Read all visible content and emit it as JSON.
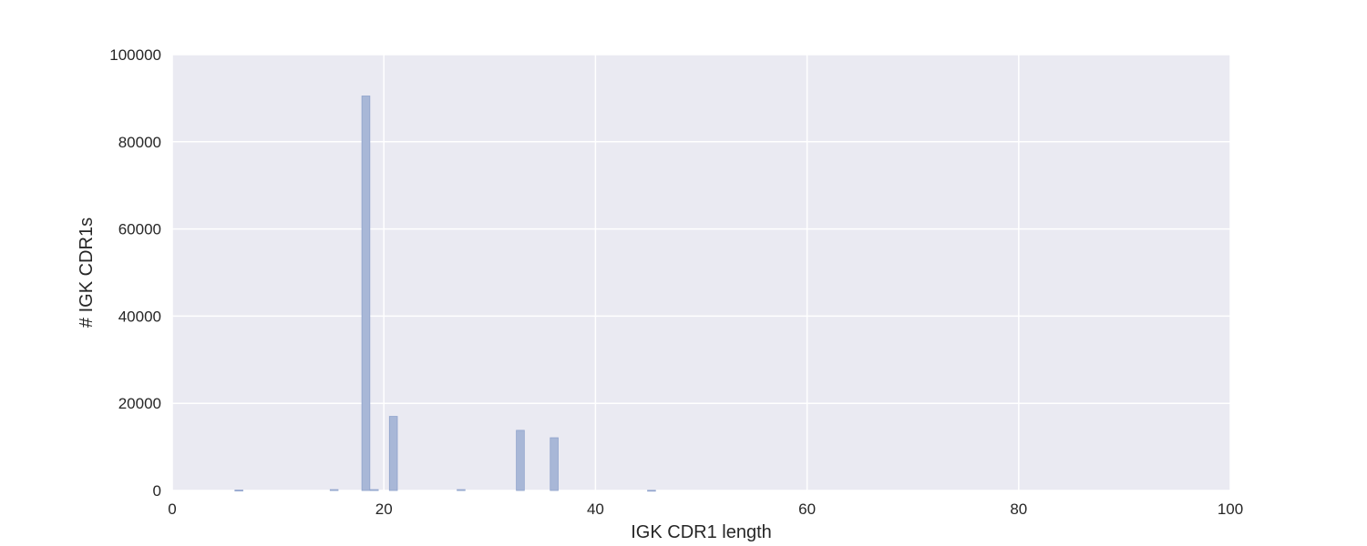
{
  "chart_data": {
    "type": "bar",
    "title": "",
    "xlabel": "IGK CDR1 length",
    "ylabel": "# IGK CDR1s",
    "xlim": [
      0,
      100
    ],
    "ylim": [
      0,
      100000
    ],
    "xticks": [
      0,
      20,
      40,
      60,
      80,
      100
    ],
    "yticks": [
      0,
      20000,
      40000,
      60000,
      80000,
      100000
    ],
    "grid": true,
    "bar_width": 0.75,
    "bars": [
      {
        "x": 6.3,
        "value": 100
      },
      {
        "x": 15.3,
        "value": 200
      },
      {
        "x": 18.3,
        "value": 90500
      },
      {
        "x": 19.1,
        "value": 200
      },
      {
        "x": 20.9,
        "value": 17000
      },
      {
        "x": 27.3,
        "value": 200
      },
      {
        "x": 32.9,
        "value": 13800
      },
      {
        "x": 36.1,
        "value": 12100
      },
      {
        "x": 45.3,
        "value": 50
      }
    ]
  },
  "colors": {
    "plot_background": "#eaeaf2",
    "grid": "#ffffff",
    "bar_fill": "#a8b7d7",
    "bar_edge": "#8fa3cc",
    "text": "#262626"
  }
}
